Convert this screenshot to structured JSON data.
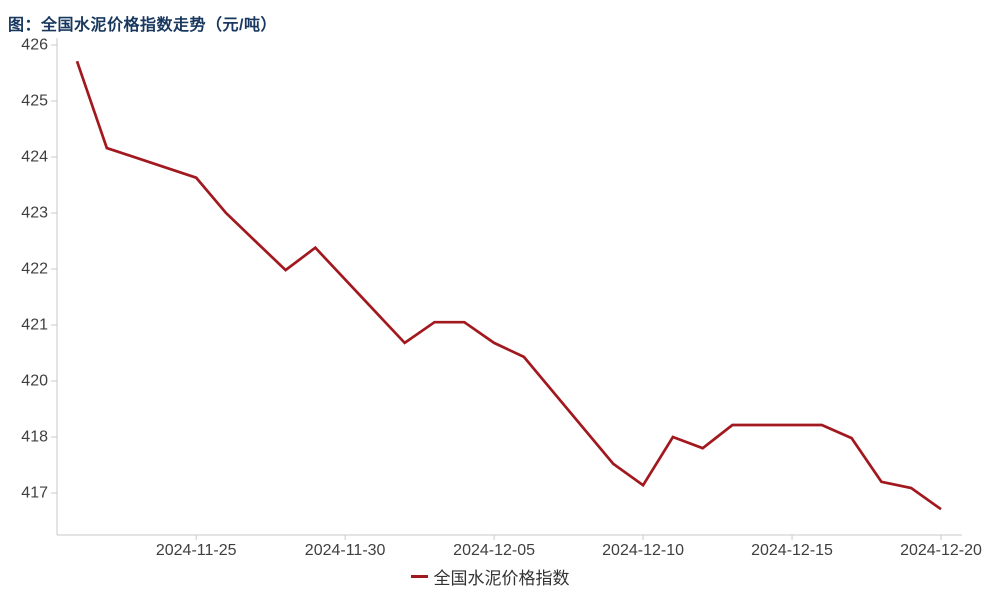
{
  "header": {
    "title": "图：全国水泥价格指数走势（元/吨）",
    "title_color": "#17375e"
  },
  "legend": {
    "label": "全国水泥价格指数",
    "marker_color": "#a2181f"
  },
  "chart_data": {
    "type": "line",
    "title": "图：全国水泥价格指数走势（元/吨）",
    "unit": "元/吨",
    "grid": false,
    "legend_position": "bottom",
    "colors": {
      "line": "#a2181f",
      "axis": "#c9c9c9",
      "tick_text": "#3f3f3f"
    },
    "y_axis": {
      "tick_labels": [
        "426",
        "425",
        "424",
        "423",
        "422",
        "421",
        "420",
        "418",
        "417"
      ]
    },
    "x_axis": {
      "tick_labels": [
        "2024-11-25",
        "2024-11-30",
        "2024-12-05",
        "2024-12-10",
        "2024-12-15",
        "2024-12-20"
      ],
      "range": [
        "2024-11-21",
        "2024-12-20"
      ]
    },
    "series": [
      {
        "name": "全国水泥价格指数",
        "color": "#a2181f",
        "points": [
          [
            "2024-11-21",
            425.71
          ],
          [
            "2024-11-22",
            424.16
          ],
          [
            "2024-11-25",
            423.63
          ],
          [
            "2024-11-26",
            423.0
          ],
          [
            "2024-11-27",
            422.49
          ],
          [
            "2024-11-28",
            421.98
          ],
          [
            "2024-11-29",
            422.38
          ],
          [
            "2024-12-02",
            420.68
          ],
          [
            "2024-12-03",
            421.05
          ],
          [
            "2024-12-04",
            421.05
          ],
          [
            "2024-12-05",
            420.68
          ],
          [
            "2024-12-06",
            420.43
          ],
          [
            "2024-12-09",
            417.52
          ],
          [
            "2024-12-10",
            417.14
          ],
          [
            "2024-12-11",
            418.0
          ],
          [
            "2024-12-12",
            417.8
          ],
          [
            "2024-12-13",
            418.43
          ],
          [
            "2024-12-16",
            418.43
          ],
          [
            "2024-12-17",
            417.98
          ],
          [
            "2024-12-18",
            417.2
          ],
          [
            "2024-12-19",
            417.09
          ],
          [
            "2024-12-20",
            416.71
          ]
        ]
      }
    ]
  }
}
